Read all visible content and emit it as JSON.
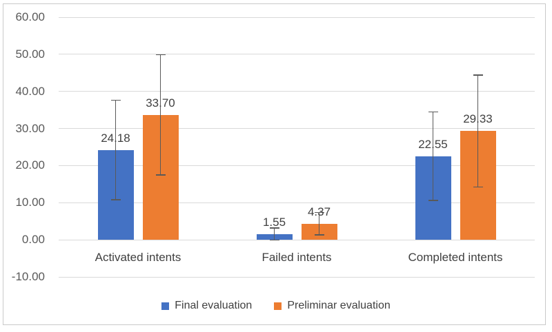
{
  "chart_data": {
    "type": "bar",
    "title": "",
    "xlabel": "",
    "ylabel": "",
    "categories": [
      "Activated intents",
      "Failed intents",
      "Completed intents"
    ],
    "series": [
      {
        "name": "Final evaluation",
        "color": "#4472C4",
        "values": [
          24.18,
          1.55,
          22.55
        ],
        "labels": [
          "24.18",
          "1.55",
          "22.55"
        ],
        "errors": [
          13.4,
          1.6,
          11.9
        ]
      },
      {
        "name": "Preliminar evaluation",
        "color": "#ED7D31",
        "values": [
          33.7,
          4.37,
          29.33
        ],
        "labels": [
          "33.70",
          "4.37",
          "29.33"
        ],
        "errors": [
          16.2,
          3.0,
          15.1
        ]
      }
    ],
    "yticks": [
      {
        "value": 60,
        "label": "60.00"
      },
      {
        "value": 50,
        "label": "50.00"
      },
      {
        "value": 40,
        "label": "40.00"
      },
      {
        "value": 30,
        "label": "30.00"
      },
      {
        "value": 20,
        "label": "20.00"
      },
      {
        "value": 10,
        "label": "10.00"
      },
      {
        "value": 0,
        "label": "0.00"
      },
      {
        "value": -10,
        "label": "-10.00"
      }
    ],
    "ylim": [
      -10,
      60
    ],
    "grid": true,
    "legend_position": "bottom",
    "error_bar_color": "#595959",
    "gridline_color": "#D9D9D9",
    "axis_text_color": "#595959",
    "label_text_color": "#404040"
  }
}
